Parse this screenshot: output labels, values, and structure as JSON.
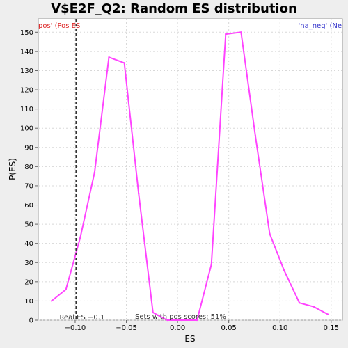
{
  "chart_data": {
    "type": "line",
    "title": "V$E2F_Q2: Random ES distribution",
    "xlabel": "ES",
    "ylabel": "P(ES)",
    "xlim": [
      -0.136,
      0.161
    ],
    "ylim": [
      0,
      157
    ],
    "x_ticks": [
      -0.1,
      -0.05,
      0.0,
      0.05,
      0.1,
      0.15
    ],
    "x_tick_labels": [
      "−0.10",
      "−0.05",
      "0.00",
      "0.05",
      "0.10",
      "0.15"
    ],
    "y_ticks": [
      0,
      10,
      20,
      30,
      40,
      50,
      60,
      70,
      80,
      90,
      100,
      110,
      120,
      130,
      140,
      150
    ],
    "grid": true,
    "series": [
      {
        "color": "#ff44ff",
        "x": [
          -0.123,
          -0.109,
          -0.095,
          -0.081,
          -0.067,
          -0.052,
          -0.038,
          -0.024,
          -0.01,
          0.004,
          0.019,
          0.033,
          0.047,
          0.062,
          0.076,
          0.09,
          0.104,
          0.119,
          0.133,
          0.147
        ],
        "y": [
          10,
          16,
          43,
          77,
          137,
          134,
          66,
          4,
          0,
          0,
          0,
          29,
          149,
          150,
          96,
          45,
          26,
          9,
          7,
          3
        ]
      }
    ],
    "real_es_line": {
      "x": -0.099,
      "label": "Real ES −0.1"
    },
    "legend_left": "pos' (Pos ES",
    "legend_right": "'na_neg' (Ne",
    "annotation": "Sets with pos scores: 51%"
  },
  "colors": {
    "series": "#ff44ff",
    "legend_left": "#dd2222",
    "legend_right": "#3333cc",
    "plot_bg": "#ffffff",
    "grid": "#d8d8d8"
  }
}
